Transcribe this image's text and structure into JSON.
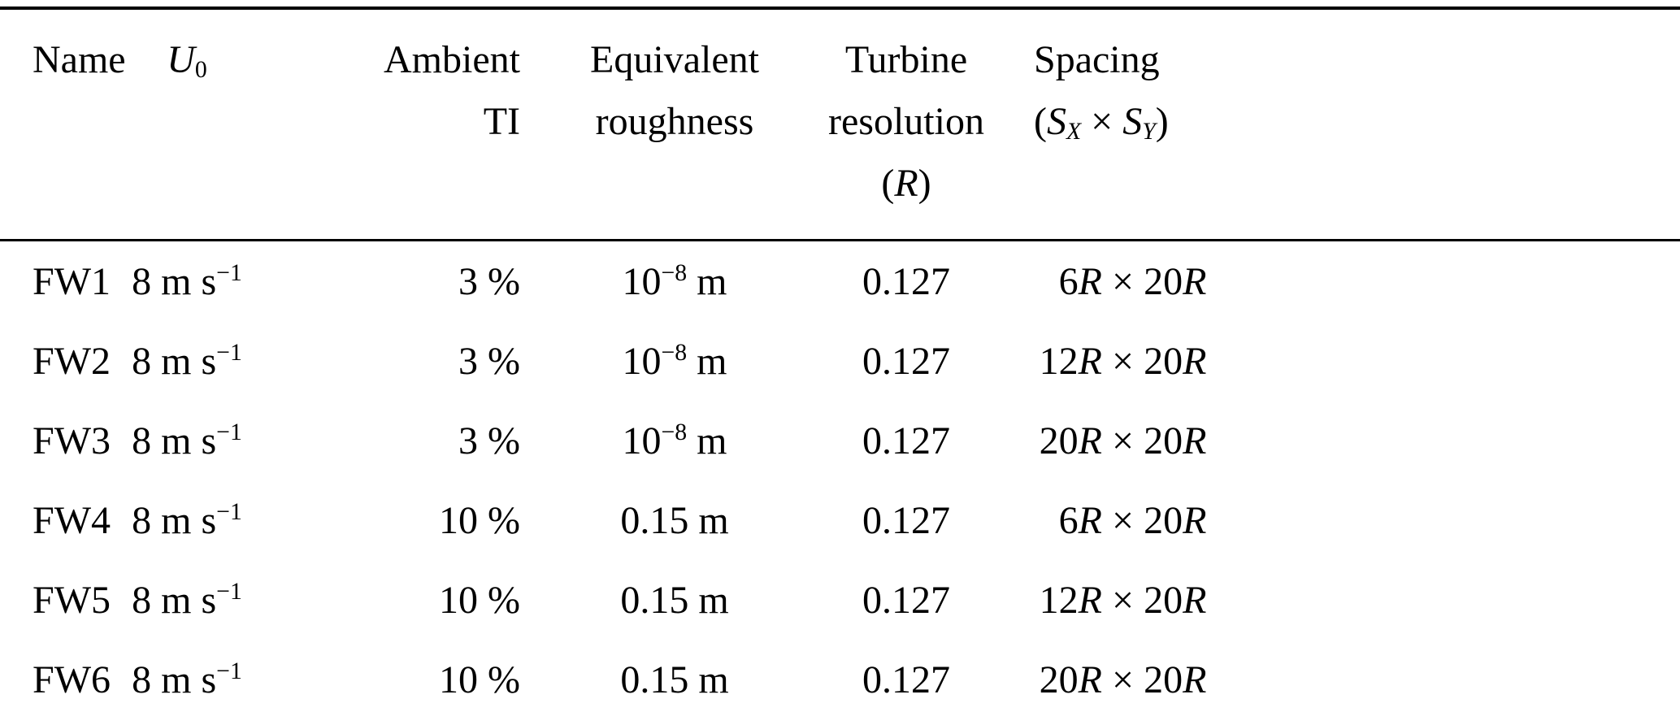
{
  "page": {
    "background_color": "#ffffff",
    "text_color": "#000000",
    "rule_color": "#000000"
  },
  "table": {
    "headers": {
      "name": "Name",
      "u0": "<i>U</i><sub>0</sub>",
      "ambient_ti": "Ambient<br>TI",
      "roughness": "Equivalent<br>roughness",
      "resolution": "Turbine<br>resolution<br>(<i>R</i>)",
      "spacing": "Spacing<br>(<i>S</i><sub><i>X</i></sub> × <i>S</i><sub><i>Y</i></sub>)"
    },
    "rows": [
      {
        "name": "FW1",
        "u0": "8 m s<sup>−1</sup>",
        "ambient_ti": "3 %",
        "roughness": "10<sup>−8</sup> m",
        "resolution": "0.127",
        "spacing_first": "6<i>R</i>",
        "spacing_rest": "× 20<i>R</i>"
      },
      {
        "name": "FW2",
        "u0": "8 m s<sup>−1</sup>",
        "ambient_ti": "3 %",
        "roughness": "10<sup>−8</sup> m",
        "resolution": "0.127",
        "spacing_first": "12<i>R</i>",
        "spacing_rest": "× 20<i>R</i>"
      },
      {
        "name": "FW3",
        "u0": "8 m s<sup>−1</sup>",
        "ambient_ti": "3 %",
        "roughness": "10<sup>−8</sup> m",
        "resolution": "0.127",
        "spacing_first": "20<i>R</i>",
        "spacing_rest": "× 20<i>R</i>"
      },
      {
        "name": "FW4",
        "u0": "8 m s<sup>−1</sup>",
        "ambient_ti": "10 %",
        "roughness": "0.15 m",
        "resolution": "0.127",
        "spacing_first": "6<i>R</i>",
        "spacing_rest": "× 20<i>R</i>"
      },
      {
        "name": "FW5",
        "u0": "8 m s<sup>−1</sup>",
        "ambient_ti": "10 %",
        "roughness": "0.15 m",
        "resolution": "0.127",
        "spacing_first": "12<i>R</i>",
        "spacing_rest": "× 20<i>R</i>"
      },
      {
        "name": "FW6",
        "u0": "8 m s<sup>−1</sup>",
        "ambient_ti": "10 %",
        "roughness": "0.15 m",
        "resolution": "0.127",
        "spacing_first": "20<i>R</i>",
        "spacing_rest": "× 20<i>R</i>"
      }
    ]
  }
}
